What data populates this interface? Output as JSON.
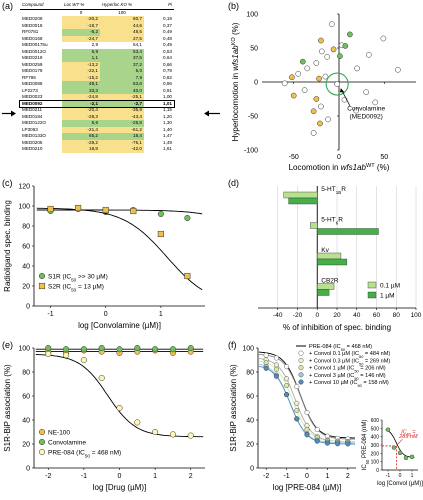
{
  "panel_labels": {
    "a": "(a)",
    "b": "(b)",
    "c": "(c)",
    "d": "(d)",
    "e": "(e)",
    "f": "(f)"
  },
  "panel_a": {
    "headers": [
      "Compound",
      "Loc WT %",
      "Hyperloc KO %",
      "Pi"
    ],
    "scale": [
      "",
      "0",
      "100",
      ""
    ],
    "colors": {
      "yellow": "#f9e08c",
      "green": "#a8d58b",
      "white": "#ffffff"
    },
    "rows": [
      {
        "name": "MED0209",
        "loc": "-20,2",
        "hyp": "60,7",
        "pi": "0,19",
        "loc_c": "yellow",
        "hyp_c": "yellow"
      },
      {
        "name": "MED0018",
        "loc": "-18,7",
        "hyp": "44,6",
        "pi": "0,37",
        "loc_c": "yellow",
        "hyp_c": "yellow"
      },
      {
        "name": "RF0781",
        "loc": "-6,2",
        "hyp": "48,5",
        "pi": "0,49",
        "loc_c": "green",
        "hyp_c": "yellow"
      },
      {
        "name": "MED0168",
        "loc": "-24,7",
        "hyp": "27,5",
        "pi": "0,48",
        "loc_c": "yellow",
        "hyp_c": "yellow"
      },
      {
        "name": "MED00175u",
        "loc": "2,9",
        "hyp": "54,1",
        "pi": "0,49",
        "loc_c": "white",
        "hyp_c": "white"
      },
      {
        "name": "MED0012O",
        "loc": "6,9",
        "hyp": "53,4",
        "pi": "0,53",
        "loc_c": "green",
        "hyp_c": "green"
      },
      {
        "name": "MED0219",
        "loc": "1,1",
        "hyp": "37,5",
        "pi": "0,64",
        "loc_c": "green",
        "hyp_c": "green"
      },
      {
        "name": "MED0259",
        "loc": "-13,2",
        "hyp": "37,2",
        "pi": "0,66",
        "loc_c": "yellow",
        "hyp_c": "green"
      },
      {
        "name": "MED0179",
        "loc": "-22,1",
        "hyp": "5,0",
        "pi": "0,79",
        "loc_c": "yellow",
        "hyp_c": "green"
      },
      {
        "name": "RF796",
        "loc": "-15,2",
        "hyp": "7,9",
        "pi": "0,82",
        "loc_c": "yellow",
        "hyp_c": "green"
      },
      {
        "name": "MED0088",
        "loc": "49,1",
        "hyp": "63,6",
        "pi": "0,86",
        "loc_c": "green",
        "hyp_c": "green"
      },
      {
        "name": "LP2273",
        "loc": "33,3",
        "hyp": "40,0",
        "pi": "0,91",
        "loc_c": "green",
        "hyp_c": "green"
      },
      {
        "name": "MED0023",
        "loc": "-24,8",
        "hyp": "-25,1",
        "pi": "1,00",
        "loc_c": "yellow",
        "hyp_c": "yellow"
      },
      {
        "name": "MED0092",
        "loc": "-2,1",
        "hyp": "-2,7",
        "pi": "1,01",
        "loc_c": "green",
        "hyp_c": "green",
        "highlight": true
      },
      {
        "name": "MED0211",
        "loc": "-20,4",
        "hyp": "-35,9",
        "pi": "1,15",
        "loc_c": "yellow",
        "hyp_c": "yellow"
      },
      {
        "name": "MED0184",
        "loc": "-28,3",
        "hyp": "-43,4",
        "pi": "1,20",
        "loc_c": "yellow",
        "hyp_c": "yellow"
      },
      {
        "name": "MED0122O",
        "loc": "5,6",
        "hyp": "-25,8",
        "pi": "1,30",
        "loc_c": "green",
        "hyp_c": "green"
      },
      {
        "name": "LP3063",
        "loc": "-21,4",
        "hyp": "-61,2",
        "pi": "1,40",
        "loc_c": "yellow",
        "hyp_c": "yellow"
      },
      {
        "name": "MED0133O",
        "loc": "65,2",
        "hyp": "18,4",
        "pi": "1,47",
        "loc_c": "green",
        "hyp_c": "green"
      },
      {
        "name": "MED0205",
        "loc": "-28,2",
        "hyp": "-75,1",
        "pi": "1,49",
        "loc_c": "yellow",
        "hyp_c": "yellow"
      },
      {
        "name": "MED0210",
        "loc": "18,8",
        "hyp": "-42,0",
        "pi": "1,61",
        "loc_c": "yellow",
        "hyp_c": "yellow"
      }
    ]
  },
  "chart_data": [
    {
      "panel": "b",
      "type": "scatter",
      "xlabel": "Locomotion in wfs1ab",
      "xlabel_sup": "WT",
      "xlabel_unit": "(%)",
      "ylabel": "Hyperlocomotion in wfs1ab",
      "ylabel_sup": "KO",
      "ylabel_unit": "(%)",
      "xlim": [
        -85,
        85
      ],
      "ylim": [
        -100,
        100
      ],
      "xticks": [
        -50,
        0,
        50
      ],
      "yticks": [
        -100,
        -50,
        0,
        50,
        100
      ],
      "annotation": "Convolamine\n(MED0092)",
      "annotation_lines": [
        "Convolamine",
        "(MED0092)"
      ],
      "colors": {
        "white": "#ffffff",
        "yellow": "#f0c04a",
        "green": "#6fbf5c",
        "circle": "#3aa65a"
      },
      "points": [
        {
          "x": -20,
          "y": 61,
          "c": "yellow"
        },
        {
          "x": -19,
          "y": 45,
          "c": "white"
        },
        {
          "x": -6,
          "y": 48,
          "c": "yellow"
        },
        {
          "x": -25,
          "y": 28,
          "c": "white"
        },
        {
          "x": 3,
          "y": 54,
          "c": "white"
        },
        {
          "x": 7,
          "y": 53,
          "c": "green"
        },
        {
          "x": 1,
          "y": 38,
          "c": "green"
        },
        {
          "x": -13,
          "y": 37,
          "c": "white"
        },
        {
          "x": -22,
          "y": 5,
          "c": "yellow"
        },
        {
          "x": -15,
          "y": 8,
          "c": "white"
        },
        {
          "x": 49,
          "y": 64,
          "c": "white"
        },
        {
          "x": 33,
          "y": 40,
          "c": "white"
        },
        {
          "x": -25,
          "y": -25,
          "c": "yellow"
        },
        {
          "x": -2,
          "y": -3,
          "c": "white"
        },
        {
          "x": -20,
          "y": -36,
          "c": "white"
        },
        {
          "x": -28,
          "y": -43,
          "c": "yellow"
        },
        {
          "x": 6,
          "y": -26,
          "c": "white"
        },
        {
          "x": -21,
          "y": -61,
          "c": "yellow"
        },
        {
          "x": 65,
          "y": 18,
          "c": "white"
        },
        {
          "x": -28,
          "y": -75,
          "c": "white"
        },
        {
          "x": 19,
          "y": -42,
          "c": "white"
        },
        {
          "x": -45,
          "y": 12,
          "c": "white"
        },
        {
          "x": -52,
          "y": 7,
          "c": "yellow"
        },
        {
          "x": -60,
          "y": -2,
          "c": "white"
        },
        {
          "x": -38,
          "y": -12,
          "c": "white"
        },
        {
          "x": -50,
          "y": -20,
          "c": "yellow"
        },
        {
          "x": -40,
          "y": 30,
          "c": "green"
        },
        {
          "x": -35,
          "y": 20,
          "c": "white"
        },
        {
          "x": 30,
          "y": -15,
          "c": "white"
        },
        {
          "x": 20,
          "y": 20,
          "c": "white"
        },
        {
          "x": -12,
          "y": -55,
          "c": "white"
        },
        {
          "x": 12,
          "y": 70,
          "c": "green"
        },
        {
          "x": -8,
          "y": 85,
          "c": "white"
        },
        {
          "x": 40,
          "y": -30,
          "c": "white"
        }
      ]
    },
    {
      "panel": "c",
      "type": "line",
      "xlabel": "log [Convolamine (µM)]",
      "ylabel": "Radioligand spec. binding",
      "xlim": [
        -1.3,
        1.8
      ],
      "ylim": [
        0,
        120
      ],
      "xticks": [
        -1,
        0,
        1
      ],
      "yticks": [
        0,
        20,
        40,
        60,
        80,
        100,
        120
      ],
      "legend_position": "bottom-left",
      "series": [
        {
          "name": "S1R (IC50 >> 30 µM)",
          "color": "#6fbf5c",
          "marker": "circle",
          "x": [
            -1,
            -0.5,
            0,
            0.5,
            1.0,
            1.48
          ],
          "y": [
            95,
            97,
            94,
            96,
            92,
            88
          ],
          "fit_ic50_log": 3,
          "fit_top": 96,
          "fit_bottom": 0
        },
        {
          "name": "S2R (IC50 = 13 µM)",
          "color": "#f0c04a",
          "marker": "square",
          "x": [
            -1,
            -0.5,
            0,
            0.5,
            1.0,
            1.48
          ],
          "y": [
            97,
            98,
            96,
            95,
            72,
            30
          ],
          "fit_ic50_log": 1.11,
          "fit_top": 98,
          "fit_bottom": 0
        }
      ]
    },
    {
      "panel": "d",
      "type": "bar",
      "xlabel": "% of inhibition of spec. binding",
      "xlim": [
        -60,
        100
      ],
      "xticks": [
        -40,
        -20,
        0,
        20,
        40,
        60,
        80,
        100
      ],
      "categories": [
        "5-HT1BR",
        "5-HT6R",
        "Kv",
        "CB2R"
      ],
      "category_labels": [
        "5-HT",
        "5-HT",
        "Kv",
        "CB2R"
      ],
      "category_subs": [
        "1B",
        "6",
        "",
        ""
      ],
      "category_suffix": [
        "R",
        "R",
        "",
        ""
      ],
      "legend_position": "bottom-right",
      "series": [
        {
          "name": "0.1 µM",
          "color": "#b7e08f",
          "values": [
            -34,
            -7,
            24,
            17
          ]
        },
        {
          "name": "1 µM",
          "color": "#45b049",
          "values": [
            -29,
            62,
            30,
            12
          ]
        }
      ]
    },
    {
      "panel": "e",
      "type": "line",
      "xlabel": "log [Drug (µM)]",
      "ylabel": "S1R-BiP association (%)",
      "xlim": [
        -2.4,
        2.4
      ],
      "ylim": [
        0,
        100
      ],
      "xticks": [
        -2,
        -1,
        0,
        1,
        2
      ],
      "yticks": [
        0,
        20,
        40,
        60,
        80,
        100
      ],
      "legend_position": "bottom-left",
      "series": [
        {
          "name": "NE-100",
          "color": "#f0c04a",
          "marker": "circle",
          "x": [
            -2,
            -1.5,
            -1,
            -0.5,
            0,
            0.5,
            1,
            1.5,
            2
          ],
          "y": [
            97,
            96,
            98,
            97,
            96,
            97,
            98,
            96,
            97
          ],
          "flat": 97
        },
        {
          "name": "Convolamine",
          "color": "#6fbf5c",
          "marker": "circle",
          "x": [
            -2,
            -1.5,
            -1,
            -0.5,
            0,
            0.5,
            1,
            1.5,
            2
          ],
          "y": [
            100,
            99,
            99,
            100,
            99,
            100,
            99,
            99,
            100
          ],
          "flat": 99
        },
        {
          "name": "PRE-084 (IC50 = 468 nM)",
          "color": "#fff7b0",
          "marker": "circle",
          "x": [
            -2,
            -1.5,
            -1,
            -0.5,
            0,
            0.5,
            1,
            1.5,
            2
          ],
          "y": [
            95,
            94,
            90,
            75,
            50,
            38,
            30,
            28,
            27
          ],
          "fit_ic50_log": -0.33,
          "fit_top": 95,
          "fit_bottom": 26
        }
      ]
    },
    {
      "panel": "f",
      "type": "line",
      "xlabel": "log [PRE-084 (µM)]",
      "ylabel": "S1R-BiP association (%)",
      "xlim": [
        -2.4,
        2.4
      ],
      "ylim": [
        0,
        100
      ],
      "xticks": [
        -2,
        -1,
        0,
        1,
        2
      ],
      "yticks": [
        0,
        20,
        40,
        60,
        80,
        100
      ],
      "legend_position": "top-right",
      "series": [
        {
          "name": "PRE-084 (IC50 = 468 nM)",
          "color": "#000000",
          "marker": "none",
          "fit_ic50_log": -0.33,
          "fit_top": 97,
          "fit_bottom": 25
        },
        {
          "name": "+ Convol 0.1 µM (IC50 = 484 nM)",
          "color": "#ffffff",
          "marker": "circle",
          "fit_ic50_log": -0.31,
          "fit_top": 95,
          "fit_bottom": 24
        },
        {
          "name": "+ Convol 0.3 µM (IC50 = 269 nM)",
          "color": "#eef2cc",
          "marker": "circle",
          "fit_ic50_log": -0.57,
          "fit_top": 92,
          "fit_bottom": 22
        },
        {
          "name": "+ Convol 1 µM (IC50 = 206 nM)",
          "color": "#d9e7a8",
          "marker": "circle",
          "fit_ic50_log": -0.69,
          "fit_top": 90,
          "fit_bottom": 22
        },
        {
          "name": "+ Convol 3 µM (IC50 = 146 nM)",
          "color": "#a2c6d8",
          "marker": "circle",
          "fit_ic50_log": -0.84,
          "fit_top": 88,
          "fit_bottom": 21
        },
        {
          "name": "+ Convol 10 µM (IC50 = 158 nM)",
          "color": "#4f8cb8",
          "marker": "circle",
          "fit_ic50_log": -0.8,
          "fit_top": 86,
          "fit_bottom": 20
        }
      ]
    },
    {
      "panel": "f-inset",
      "type": "line",
      "xlabel": "log [Convol (µM)]",
      "ylabel": "IC50 PRE-084 (nM)",
      "xlim": [
        -1.5,
        1.5
      ],
      "ylim": [
        0,
        600
      ],
      "xticks": [
        -1,
        0,
        1
      ],
      "yticks": [
        0,
        100,
        200,
        300,
        400,
        500,
        600
      ],
      "annotation": "IC50 = 289 nM",
      "annotation_lines": [
        "IC",
        "50",
        " =",
        "289 nM"
      ],
      "annotation_color": "#e0201b",
      "series": [
        {
          "name": "IC50",
          "color": "#6fbf5c",
          "marker": "circle",
          "x": [
            -1,
            -0.5,
            0,
            0.5,
            1
          ],
          "y": [
            484,
            269,
            206,
            146,
            158
          ],
          "fit_ic50_log": -0.3,
          "fit_top": 500,
          "fit_bottom": 150
        }
      ],
      "reference_line": 289
    }
  ]
}
